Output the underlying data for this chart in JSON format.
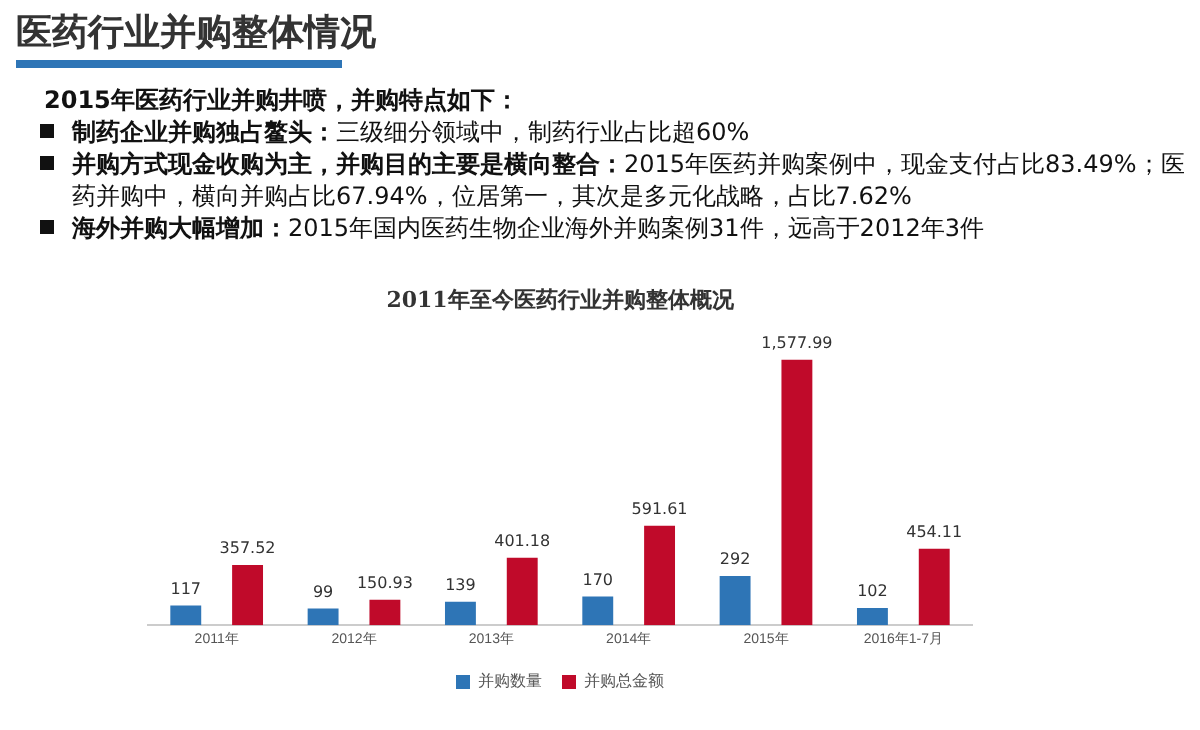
{
  "chart_data": {
    "type": "bar",
    "title": "医药行业并购整体情况",
    "subtitle": "2011年至今医药行业并购整体概况",
    "annotations": [
      "2015年医药行业并购井喷，并购特点如下：",
      "制药企业并购独占鳌头：三级细分领域中，制药行业占比超60%",
      "并购方式现金收购为主，并购目的主要是横向整合：2015年医药并购案例中，现金支付占比83.49%；医药并购中，横向并购占比67.94%，位居第一，其次是多元化战略，占比7.62%",
      "海外并购大幅增加：2015年国内医药生物企业海外并购案例31件，远高于2012年3件"
    ],
    "categories": [
      "2011年",
      "2012年",
      "2013年",
      "2014年",
      "2015年",
      "2016年1-7月"
    ],
    "series": [
      {
        "name": "并购数量",
        "color": "#2e75b6",
        "values": [
          117,
          99,
          139,
          170,
          292,
          102
        ],
        "value_labels": [
          "117",
          "99",
          "139",
          "170",
          "292",
          "102"
        ]
      },
      {
        "name": "并购总金额",
        "color": "#c00a2a",
        "values": [
          357.52,
          150.93,
          401.18,
          591.61,
          1577.99,
          454.11
        ],
        "value_labels": [
          "357.52",
          "150.93",
          "401.18",
          "591.61",
          "1,577.99",
          "454.11"
        ]
      }
    ],
    "legend": "bottom",
    "grid": false
  }
}
